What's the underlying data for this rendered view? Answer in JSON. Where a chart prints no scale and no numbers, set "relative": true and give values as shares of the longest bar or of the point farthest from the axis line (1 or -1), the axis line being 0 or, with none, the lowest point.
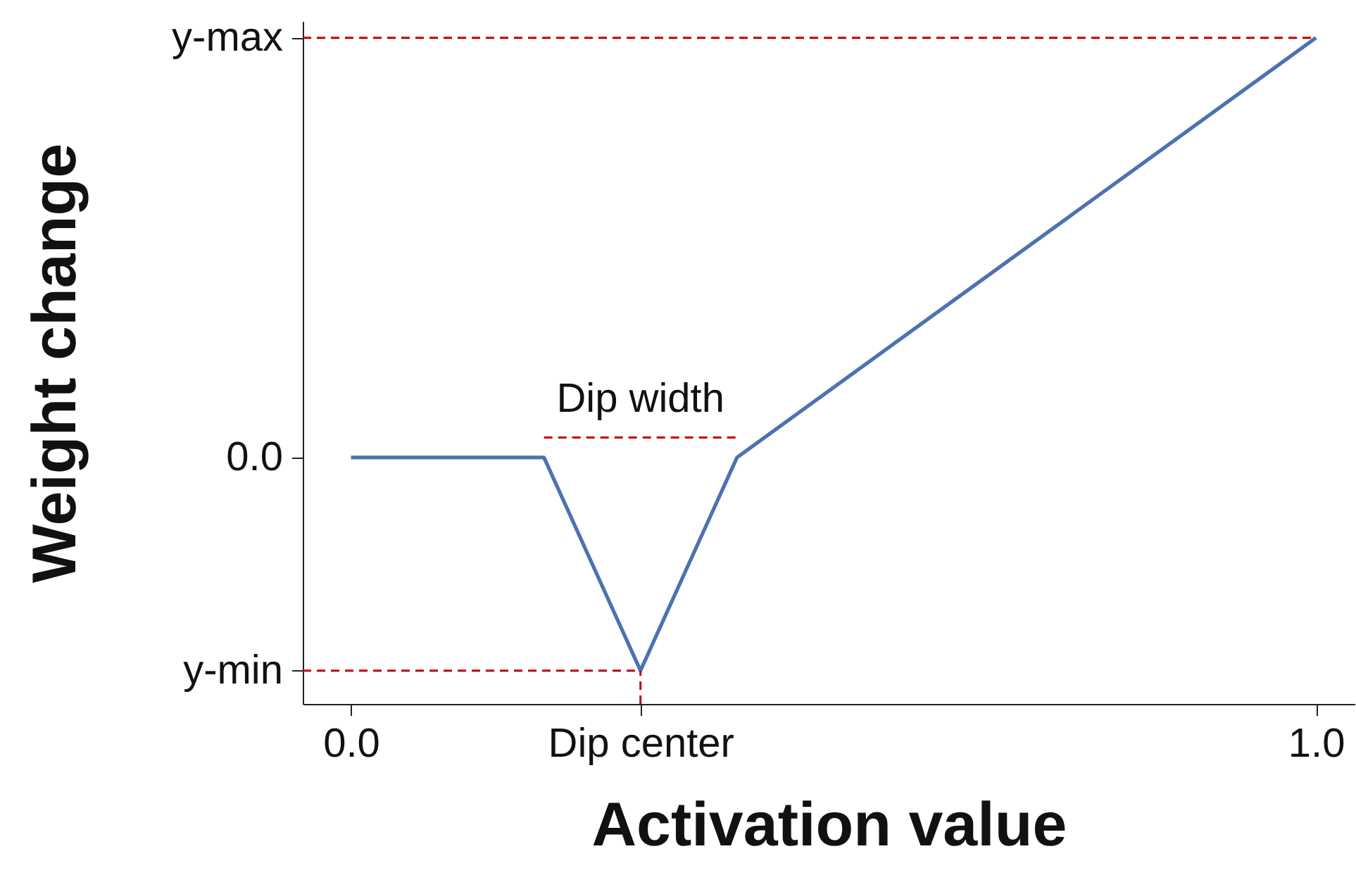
{
  "chart_data": {
    "type": "line",
    "xlabel": "Activation value",
    "ylabel": "Weight change",
    "xlim": [
      -0.05,
      1.04
    ],
    "xticks": [
      {
        "value": 0,
        "label": "0.0"
      },
      {
        "value": 0.3,
        "label": "Dip center"
      },
      {
        "value": 1,
        "label": "1.0"
      }
    ],
    "relative": true,
    "grid": false,
    "series": [
      {
        "color": "#4c72b0",
        "line_style": "solid",
        "x": [
          0,
          0.2,
          0.3,
          0.4,
          1
        ],
        "values": [
          0.37,
          0.37,
          0.05,
          0.37,
          1
        ]
      },
      {
        "color": "#c00000",
        "line_style": "dashed",
        "x": [
          -0.05,
          1
        ],
        "values": [
          1,
          1
        ]
      },
      {
        "color": "#c00000",
        "line_style": "dashed",
        "x": [
          -0.05,
          0.3
        ],
        "values": [
          0.05,
          0.05
        ]
      },
      {
        "color": "#c00000",
        "line_style": "dashed",
        "x": [
          0.3,
          0.3
        ],
        "values": [
          0,
          0.05
        ]
      },
      {
        "color": "#c00000",
        "line_style": "dashed",
        "x": [
          0.2,
          0.4
        ],
        "values": [
          0.4,
          0.4
        ]
      }
    ],
    "annotations": [
      "y-max",
      "0.0",
      "y-min",
      "Dip width"
    ]
  }
}
